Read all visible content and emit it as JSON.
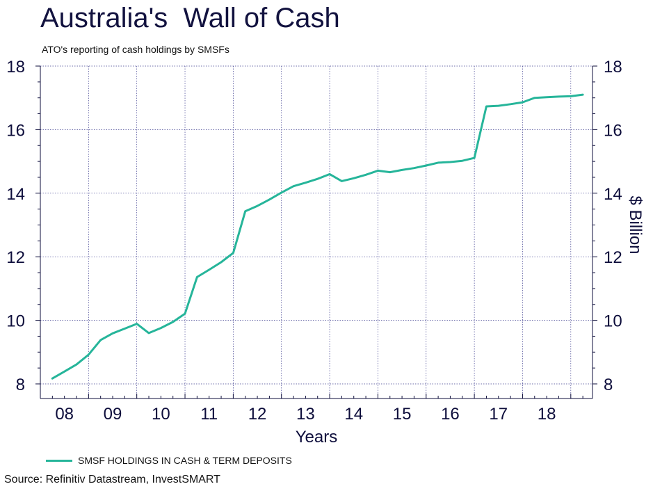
{
  "title": "Australia's  Wall of Cash",
  "subtitle": "ATO's reporting of cash holdings by SMSFs",
  "source": "Source: Refinitiv Datastream, InvestSMART",
  "colors": {
    "series": "#26b59a",
    "axis": "#0d0d3b",
    "grid": "#3d3d8f"
  },
  "chart_data": {
    "type": "line",
    "xlabel": "Years",
    "ylabel": "$ Billion",
    "ylim": [
      8,
      18
    ],
    "yticks": [
      8,
      10,
      12,
      14,
      16,
      18
    ],
    "xticklabels": [
      "08",
      "09",
      "10",
      "11",
      "12",
      "13",
      "14",
      "15",
      "16",
      "17",
      "18"
    ],
    "xlim": [
      2008.0,
      2019.45
    ],
    "grid": true,
    "legend_position": "bottom-left",
    "series": [
      {
        "name": "SMSF HOLDINGS IN CASH & TERM DEPOSITS",
        "x": [
          2008.25,
          2008.5,
          2008.75,
          2009.0,
          2009.25,
          2009.5,
          2009.75,
          2010.0,
          2010.25,
          2010.5,
          2010.75,
          2011.0,
          2011.25,
          2011.5,
          2011.75,
          2012.0,
          2012.25,
          2012.5,
          2012.75,
          2013.0,
          2013.25,
          2013.5,
          2013.75,
          2014.0,
          2014.25,
          2014.5,
          2014.75,
          2015.0,
          2015.25,
          2015.5,
          2015.75,
          2016.0,
          2016.25,
          2016.5,
          2016.75,
          2017.0,
          2017.25,
          2017.5,
          2017.75,
          2018.0,
          2018.25,
          2018.5,
          2018.75,
          2019.0,
          2019.25
        ],
        "y": [
          8.17,
          8.39,
          8.61,
          8.92,
          9.38,
          9.59,
          9.74,
          9.89,
          9.6,
          9.76,
          9.95,
          10.21,
          11.36,
          11.59,
          11.83,
          12.12,
          13.43,
          13.6,
          13.8,
          14.02,
          14.22,
          14.33,
          14.45,
          14.6,
          14.38,
          14.47,
          14.58,
          14.71,
          14.66,
          14.73,
          14.79,
          14.87,
          14.96,
          14.98,
          15.02,
          15.11,
          16.73,
          16.75,
          16.8,
          16.86,
          17.0,
          17.02,
          17.04,
          17.05,
          17.1
        ]
      }
    ]
  }
}
